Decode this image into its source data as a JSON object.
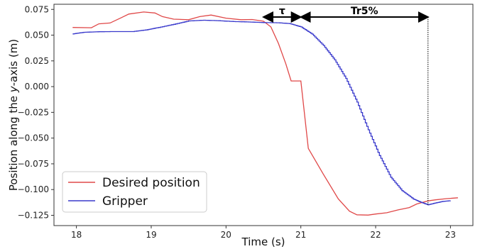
{
  "chart_data": {
    "type": "line",
    "title": "",
    "xlabel": "Time (s)",
    "ylabel": "Position along the y-axis (m)",
    "ylabel_parts": {
      "pre": "Position along the ",
      "italic": "y",
      "post": "-axis (m)"
    },
    "xlim": [
      17.7,
      23.3
    ],
    "ylim": [
      -0.135,
      0.08
    ],
    "xticks": [
      18,
      19,
      20,
      21,
      22,
      23
    ],
    "xtick_labels": [
      "18",
      "19",
      "20",
      "21",
      "22",
      "23"
    ],
    "yticks": [
      -0.125,
      -0.1,
      -0.075,
      -0.05,
      -0.025,
      0.0,
      0.025,
      0.05,
      0.075
    ],
    "ytick_labels": [
      "−0.125",
      "−0.100",
      "−0.075",
      "−0.050",
      "−0.025",
      "0.000",
      "0.025",
      "0.050",
      "0.075"
    ],
    "grid": false,
    "legend_position": "lower-left",
    "series": [
      {
        "name": "Desired position",
        "color": "#e04848",
        "points": [
          [
            17.95,
            0.0575
          ],
          [
            18.2,
            0.0572
          ],
          [
            18.3,
            0.061
          ],
          [
            18.45,
            0.0618
          ],
          [
            18.6,
            0.067
          ],
          [
            18.7,
            0.0705
          ],
          [
            18.9,
            0.0725
          ],
          [
            19.05,
            0.0715
          ],
          [
            19.15,
            0.068
          ],
          [
            19.3,
            0.0655
          ],
          [
            19.5,
            0.065
          ],
          [
            19.65,
            0.068
          ],
          [
            19.8,
            0.0695
          ],
          [
            20.0,
            0.0665
          ],
          [
            20.2,
            0.065
          ],
          [
            20.35,
            0.0652
          ],
          [
            20.5,
            0.0635
          ],
          [
            20.6,
            0.058
          ],
          [
            20.7,
            0.042
          ],
          [
            20.8,
            0.022
          ],
          [
            20.87,
            0.0055
          ],
          [
            21.0,
            0.0055
          ],
          [
            21.1,
            -0.06
          ],
          [
            21.3,
            -0.085
          ],
          [
            21.5,
            -0.109
          ],
          [
            21.65,
            -0.121
          ],
          [
            21.75,
            -0.1245
          ],
          [
            21.9,
            -0.1248
          ],
          [
            22.0,
            -0.1238
          ],
          [
            22.15,
            -0.1225
          ],
          [
            22.3,
            -0.1198
          ],
          [
            22.45,
            -0.1175
          ],
          [
            22.55,
            -0.114
          ],
          [
            22.7,
            -0.111
          ],
          [
            22.8,
            -0.11
          ],
          [
            22.95,
            -0.1088
          ],
          [
            23.1,
            -0.108
          ]
        ]
      },
      {
        "name": "Gripper",
        "color": "#3a3acc",
        "points": [
          [
            17.95,
            0.0512
          ],
          [
            18.1,
            0.0528
          ],
          [
            18.3,
            0.0533
          ],
          [
            18.5,
            0.0535
          ],
          [
            18.75,
            0.0535
          ],
          [
            18.95,
            0.0553
          ],
          [
            19.1,
            0.0575
          ],
          [
            19.3,
            0.0605
          ],
          [
            19.5,
            0.0638
          ],
          [
            19.7,
            0.0645
          ],
          [
            19.9,
            0.064
          ],
          [
            20.1,
            0.0632
          ],
          [
            20.3,
            0.0628
          ],
          [
            20.5,
            0.0622
          ],
          [
            20.7,
            0.062
          ],
          [
            20.85,
            0.0612
          ],
          [
            21.0,
            0.058
          ],
          [
            21.15,
            0.051
          ],
          [
            21.3,
            0.04
          ],
          [
            21.45,
            0.026
          ],
          [
            21.6,
            0.008
          ],
          [
            21.75,
            -0.015
          ],
          [
            21.9,
            -0.042
          ],
          [
            22.05,
            -0.067
          ],
          [
            22.2,
            -0.088
          ],
          [
            22.35,
            -0.101
          ],
          [
            22.5,
            -0.109
          ],
          [
            22.6,
            -0.1122
          ],
          [
            22.7,
            -0.1148
          ],
          [
            22.8,
            -0.113
          ],
          [
            22.9,
            -0.1115
          ],
          [
            23.0,
            -0.1108
          ]
        ]
      }
    ],
    "annotations": {
      "tau_label": "τ",
      "tau_range": [
        20.5,
        21.0
      ],
      "tr_label": "Tr5%",
      "tr_range": [
        21.0,
        22.7
      ],
      "settle_line_x": 22.7,
      "arrow_y": 0.071
    }
  }
}
